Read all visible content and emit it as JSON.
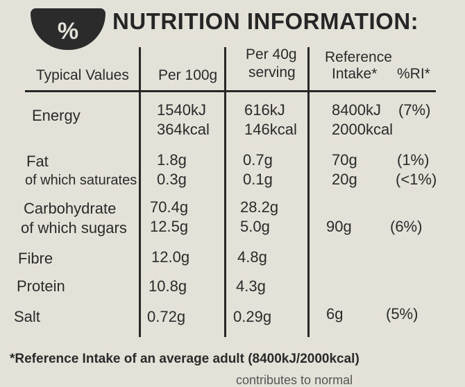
{
  "title": "NUTRITION INFORMATION:",
  "badge_symbol": "%",
  "headers": {
    "typical": "Typical Values",
    "per100": "Per 100g",
    "per40_line1": "Per 40g",
    "per40_line2": "serving",
    "ref_line1": "Reference",
    "ref_line2": "Intake*",
    "ri": "%RI*"
  },
  "rows": [
    {
      "label": "Energy",
      "per100": "1540kJ",
      "serving": "616kJ",
      "ref": "8400kJ",
      "ri": "(7%)"
    },
    {
      "label": "",
      "per100": "364kcal",
      "serving": "146kcal",
      "ref": "2000kcal",
      "ri": ""
    },
    {
      "label": "Fat",
      "per100": "1.8g",
      "serving": "0.7g",
      "ref": "70g",
      "ri": "(1%)"
    },
    {
      "label": "of which saturates",
      "per100": "0.3g",
      "serving": "0.1g",
      "ref": "20g",
      "ri": "(<1%)"
    },
    {
      "label": "Carbohydrate",
      "per100": "70.4g",
      "serving": "28.2g",
      "ref": "",
      "ri": ""
    },
    {
      "label": "of which sugars",
      "per100": "12.5g",
      "serving": "5.0g",
      "ref": "90g",
      "ri": "(6%)"
    },
    {
      "label": "Fibre",
      "per100": "12.0g",
      "serving": "4.8g",
      "ref": "",
      "ri": ""
    },
    {
      "label": "Protein",
      "per100": "10.8g",
      "serving": "4.3g",
      "ref": "",
      "ri": ""
    },
    {
      "label": "Salt",
      "per100": "0.72g",
      "serving": "0.29g",
      "ref": "6g",
      "ri": "(5%)"
    }
  ],
  "footnote": "*Reference Intake of an average adult (8400kJ/2000kcal)",
  "cutoff_text": "contributes to normal",
  "colors": {
    "background": "#e4e1d8",
    "ink": "#262626"
  }
}
